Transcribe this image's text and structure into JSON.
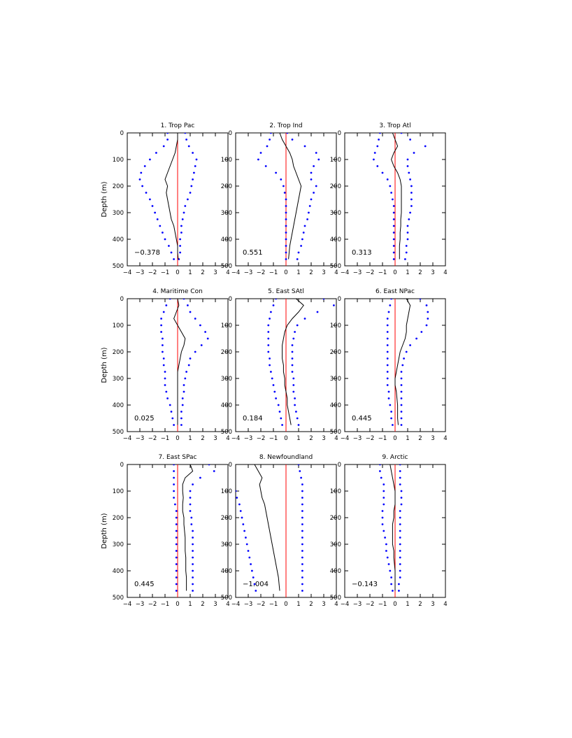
{
  "chart_data": {
    "type": "line",
    "layout": "3x3 grid of vertical depth profiles",
    "ylabel": "Depth (m)",
    "x_ticks": [
      -4,
      -3,
      -2,
      -1,
      0,
      1,
      2,
      3,
      4
    ],
    "y_ticks": [
      0,
      100,
      200,
      300,
      400,
      500
    ],
    "xlim": [
      -4,
      4
    ],
    "ylim": [
      0,
      500
    ],
    "y_inverted": true,
    "colors": {
      "profile": "#000000",
      "bounds": "#0000ff",
      "zero_line": "#ff0000"
    },
    "panels": [
      {
        "title": "1. Trop Pac",
        "annotation": "−0.378",
        "depth": [
          0,
          25,
          50,
          75,
          100,
          125,
          150,
          175,
          200,
          225,
          250,
          275,
          300,
          325,
          350,
          375,
          400,
          425,
          450,
          475
        ],
        "profile": [
          0.0,
          0.0,
          -0.1,
          -0.2,
          -0.4,
          -0.6,
          -0.8,
          -1.0,
          -0.8,
          -0.9,
          -0.8,
          -0.7,
          -0.6,
          -0.5,
          -0.3,
          -0.2,
          -0.1,
          0.0,
          0.0,
          0.05
        ],
        "lower": [
          -0.8,
          -0.8,
          -1.1,
          -1.7,
          -2.2,
          -2.6,
          -2.9,
          -3.0,
          -2.8,
          -2.5,
          -2.2,
          -2.0,
          -1.8,
          -1.6,
          -1.4,
          -1.2,
          -1.0,
          -0.7,
          -0.5,
          -0.3
        ],
        "upper": [
          0.6,
          0.7,
          0.9,
          1.2,
          1.5,
          1.4,
          1.3,
          1.2,
          1.1,
          1.0,
          0.8,
          0.6,
          0.5,
          0.4,
          0.3,
          0.3,
          0.2,
          0.2,
          0.2,
          0.1
        ]
      },
      {
        "title": "2. Trop Ind",
        "annotation": "0.551",
        "depth": [
          0,
          25,
          50,
          75,
          100,
          125,
          150,
          175,
          200,
          225,
          250,
          275,
          300,
          325,
          350,
          375,
          400,
          425,
          450,
          475
        ],
        "profile": [
          -0.5,
          -0.3,
          0.0,
          0.3,
          0.5,
          0.6,
          0.8,
          1.0,
          1.2,
          1.1,
          1.0,
          0.9,
          0.8,
          0.7,
          0.6,
          0.5,
          0.4,
          0.3,
          0.25,
          0.2
        ],
        "lower": [
          -1.2,
          -1.3,
          -1.5,
          -2.0,
          -2.2,
          -1.6,
          -0.8,
          -0.4,
          -0.2,
          -0.1,
          0.0,
          0.0,
          0.0,
          0.0,
          0.0,
          0.0,
          0.0,
          0.0,
          0.0,
          0.0
        ],
        "upper": [
          0.1,
          0.5,
          1.5,
          2.4,
          2.6,
          2.2,
          2.0,
          2.0,
          2.4,
          2.2,
          2.0,
          1.9,
          1.8,
          1.7,
          1.5,
          1.4,
          1.3,
          1.2,
          1.0,
          0.9
        ]
      },
      {
        "title": "3. Trop Atl",
        "annotation": "0.313",
        "depth": [
          0,
          25,
          50,
          75,
          100,
          125,
          150,
          175,
          200,
          225,
          250,
          275,
          300,
          325,
          350,
          375,
          400,
          425,
          450,
          475
        ],
        "profile": [
          -0.2,
          0.0,
          0.2,
          -0.1,
          -0.3,
          -0.1,
          0.2,
          0.4,
          0.5,
          0.5,
          0.5,
          0.5,
          0.5,
          0.45,
          0.45,
          0.4,
          0.4,
          0.35,
          0.35,
          0.35
        ],
        "lower": [
          -1.2,
          -1.3,
          -1.4,
          -1.6,
          -1.7,
          -1.4,
          -1.0,
          -0.6,
          -0.4,
          -0.3,
          -0.2,
          -0.1,
          -0.1,
          -0.1,
          -0.1,
          -0.1,
          -0.1,
          -0.1,
          -0.1,
          -0.1
        ],
        "upper": [
          0.5,
          1.2,
          2.4,
          1.5,
          1.0,
          1.0,
          1.1,
          1.2,
          1.3,
          1.3,
          1.3,
          1.3,
          1.2,
          1.1,
          1.0,
          1.0,
          1.0,
          0.9,
          0.9,
          0.8
        ]
      },
      {
        "title": "4. Maritime Con",
        "annotation": "0.025",
        "depth": [
          0,
          25,
          50,
          75,
          100,
          125,
          150,
          175,
          200,
          225,
          250,
          275,
          300,
          325,
          350,
          375,
          400,
          425,
          450,
          475
        ],
        "profile": [
          0.0,
          0.1,
          -0.1,
          -0.3,
          0.0,
          0.3,
          0.6,
          0.5,
          0.3,
          0.2,
          0.1,
          0.0,
          0.0,
          0.0,
          0.0,
          0.0,
          0.0,
          0.0,
          0.0,
          0.0
        ],
        "lower": [
          -0.6,
          -0.9,
          -1.1,
          -1.3,
          -1.3,
          -1.3,
          -1.2,
          -1.2,
          -1.2,
          -1.1,
          -1.1,
          -1.0,
          -1.0,
          -1.0,
          -0.9,
          -0.8,
          -0.6,
          -0.5,
          -0.4,
          -0.3
        ],
        "upper": [
          0.5,
          0.8,
          1.0,
          1.4,
          1.8,
          2.2,
          2.4,
          1.9,
          1.4,
          1.0,
          0.9,
          0.7,
          0.6,
          0.5,
          0.5,
          0.4,
          0.4,
          0.3,
          0.3,
          0.3
        ]
      },
      {
        "title": "5. East SAtl",
        "annotation": "0.184",
        "depth": [
          0,
          25,
          50,
          75,
          100,
          125,
          150,
          175,
          200,
          225,
          250,
          275,
          300,
          325,
          350,
          375,
          400,
          425,
          450,
          475
        ],
        "profile": [
          0.8,
          1.4,
          1.0,
          0.5,
          0.1,
          -0.1,
          -0.2,
          -0.3,
          -0.3,
          -0.3,
          -0.2,
          -0.2,
          -0.1,
          -0.1,
          0.0,
          0.1,
          0.1,
          0.2,
          0.3,
          0.4
        ],
        "lower": [
          -0.8,
          -1.0,
          -1.2,
          -1.3,
          -1.4,
          -1.4,
          -1.4,
          -1.4,
          -1.4,
          -1.3,
          -1.3,
          -1.2,
          -1.1,
          -1.0,
          -0.9,
          -0.8,
          -0.6,
          -0.5,
          -0.4,
          -0.3
        ],
        "upper": [
          3.0,
          3.8,
          2.5,
          1.5,
          0.9,
          0.7,
          0.6,
          0.5,
          0.5,
          0.5,
          0.5,
          0.5,
          0.6,
          0.6,
          0.6,
          0.7,
          0.7,
          0.8,
          0.9,
          1.0
        ]
      },
      {
        "title": "6. East NPac",
        "annotation": "0.445",
        "depth": [
          0,
          25,
          50,
          75,
          100,
          125,
          150,
          175,
          200,
          225,
          250,
          275,
          300,
          325,
          350,
          375,
          400,
          425,
          450,
          475
        ],
        "profile": [
          0.9,
          1.2,
          1.1,
          1.0,
          0.9,
          0.9,
          0.8,
          0.6,
          0.4,
          0.3,
          0.2,
          0.1,
          0.0,
          0.0,
          0.1,
          0.15,
          0.2,
          0.2,
          0.2,
          0.25
        ],
        "lower": [
          -0.3,
          -0.4,
          -0.5,
          -0.6,
          -0.6,
          -0.6,
          -0.6,
          -0.6,
          -0.6,
          -0.6,
          -0.6,
          -0.6,
          -0.6,
          -0.6,
          -0.5,
          -0.5,
          -0.4,
          -0.3,
          -0.3,
          -0.2
        ],
        "upper": [
          2.0,
          2.5,
          2.6,
          2.6,
          2.5,
          2.1,
          1.7,
          1.2,
          0.9,
          0.7,
          0.6,
          0.5,
          0.5,
          0.5,
          0.5,
          0.5,
          0.5,
          0.5,
          0.5,
          0.5
        ]
      },
      {
        "title": "7. East SPac",
        "annotation": "0.445",
        "depth": [
          0,
          25,
          50,
          75,
          100,
          125,
          150,
          175,
          200,
          225,
          250,
          275,
          300,
          325,
          350,
          375,
          400,
          425,
          450,
          475
        ],
        "profile": [
          1.0,
          1.2,
          0.6,
          0.4,
          0.4,
          0.45,
          0.4,
          0.4,
          0.5,
          0.5,
          0.55,
          0.6,
          0.6,
          0.6,
          0.65,
          0.65,
          0.65,
          0.7,
          0.7,
          0.7
        ],
        "lower": [
          -0.3,
          -0.3,
          -0.3,
          -0.3,
          -0.3,
          -0.3,
          -0.2,
          -0.1,
          -0.1,
          -0.1,
          -0.1,
          -0.1,
          -0.1,
          -0.1,
          -0.1,
          -0.1,
          -0.1,
          -0.1,
          -0.1,
          -0.1
        ],
        "upper": [
          2.5,
          2.9,
          1.8,
          1.2,
          1.0,
          1.0,
          1.0,
          1.0,
          1.1,
          1.1,
          1.2,
          1.2,
          1.2,
          1.2,
          1.2,
          1.2,
          1.2,
          1.2,
          1.2,
          1.2
        ]
      },
      {
        "title": "8. Newfoundland",
        "annotation": "−1.004",
        "depth": [
          0,
          25,
          50,
          75,
          100,
          125,
          150,
          175,
          200,
          225,
          250,
          275,
          300,
          325,
          350,
          375,
          400,
          425,
          450,
          475
        ],
        "profile": [
          -2.5,
          -2.2,
          -1.9,
          -2.1,
          -2.0,
          -1.9,
          -1.7,
          -1.6,
          -1.5,
          -1.4,
          -1.3,
          -1.2,
          -1.1,
          -1.0,
          -0.9,
          -0.8,
          -0.7,
          -0.6,
          -0.55,
          -0.5
        ],
        "lower": [
          -4.4,
          -4.4,
          -4.4,
          -4.3,
          -4.0,
          -3.9,
          -3.7,
          -3.6,
          -3.5,
          -3.4,
          -3.3,
          -3.2,
          -3.1,
          -3.0,
          -2.9,
          -2.8,
          -2.7,
          -2.6,
          -2.5,
          -2.4
        ],
        "upper": [
          1.0,
          1.1,
          1.2,
          1.3,
          1.3,
          1.3,
          1.3,
          1.3,
          1.3,
          1.3,
          1.3,
          1.3,
          1.3,
          1.3,
          1.3,
          1.3,
          1.3,
          1.3,
          1.3,
          1.3
        ]
      },
      {
        "title": "9. Arctic",
        "annotation": "−0.143",
        "depth": [
          0,
          25,
          50,
          75,
          100,
          125,
          150,
          175,
          200,
          225,
          250,
          275,
          300,
          325,
          350,
          375,
          400,
          425,
          450,
          475
        ],
        "profile": [
          -0.4,
          -0.3,
          -0.2,
          -0.1,
          0.0,
          0.0,
          0.0,
          -0.1,
          -0.1,
          -0.2,
          -0.2,
          -0.2,
          -0.2,
          -0.1,
          -0.1,
          -0.05,
          0.0,
          0.0,
          0.0,
          0.0
        ],
        "lower": [
          -1.2,
          -1.2,
          -1.1,
          -0.9,
          -0.9,
          -0.9,
          -0.9,
          -1.0,
          -1.0,
          -1.0,
          -0.9,
          -0.8,
          -0.7,
          -0.7,
          -0.6,
          -0.5,
          -0.4,
          -0.3,
          -0.3,
          -0.2
        ],
        "upper": [
          0.4,
          0.4,
          0.4,
          0.4,
          0.5,
          0.5,
          0.5,
          0.4,
          0.4,
          0.4,
          0.4,
          0.4,
          0.4,
          0.4,
          0.4,
          0.4,
          0.4,
          0.4,
          0.3,
          0.3
        ]
      }
    ]
  }
}
